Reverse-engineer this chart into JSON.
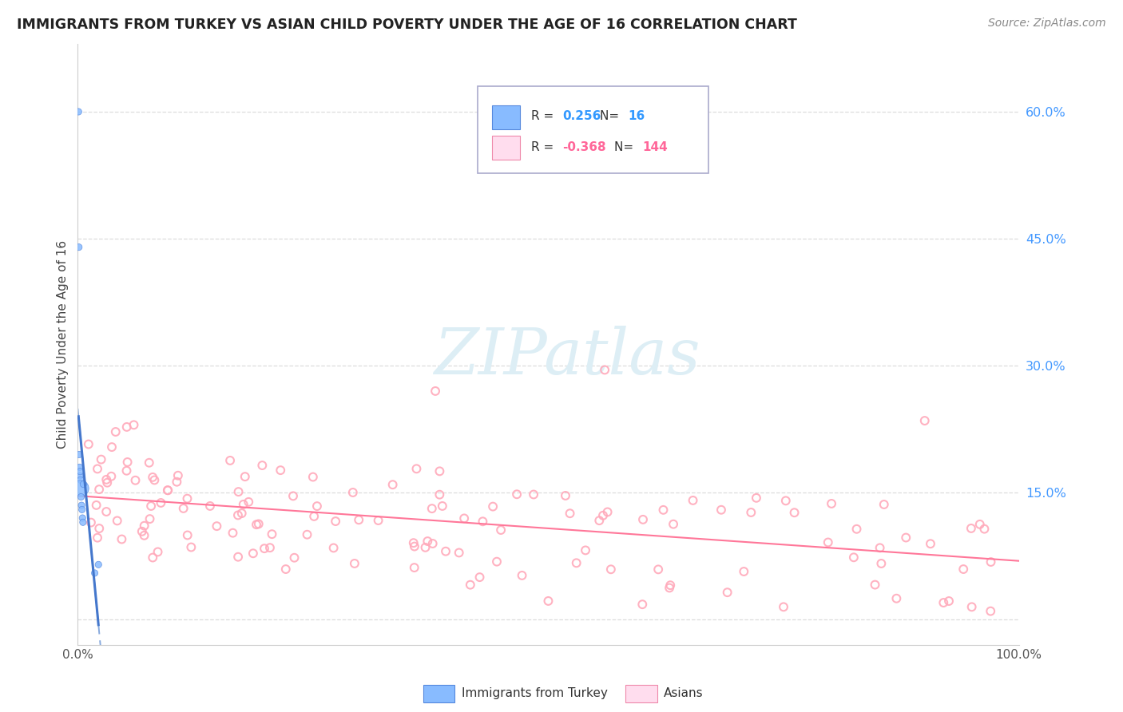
{
  "title": "IMMIGRANTS FROM TURKEY VS ASIAN CHILD POVERTY UNDER THE AGE OF 16 CORRELATION CHART",
  "source": "Source: ZipAtlas.com",
  "ylabel": "Child Poverty Under the Age of 16",
  "xlim": [
    0,
    1.0
  ],
  "ylim": [
    -0.03,
    0.68
  ],
  "legend_r_turkey": "0.256",
  "legend_n_turkey": "16",
  "legend_r_asian": "-0.368",
  "legend_n_asian": "144",
  "turkey_color": "#88bbff",
  "turkey_edge_color": "#5588dd",
  "asian_color": "#ffaabb",
  "asian_edge_color": "#ee88aa",
  "turkey_line_color": "#4477cc",
  "turkey_dash_color": "#88aadd",
  "asian_line_color": "#ff7799",
  "watermark_color": "#ddeef5",
  "title_color": "#222222",
  "source_color": "#888888",
  "tick_color": "#4499ff",
  "ylabel_color": "#444444",
  "grid_color": "#dddddd",
  "spine_color": "#cccccc",
  "legend_border_color": "#aaaacc",
  "bottom_label_color": "#333333"
}
